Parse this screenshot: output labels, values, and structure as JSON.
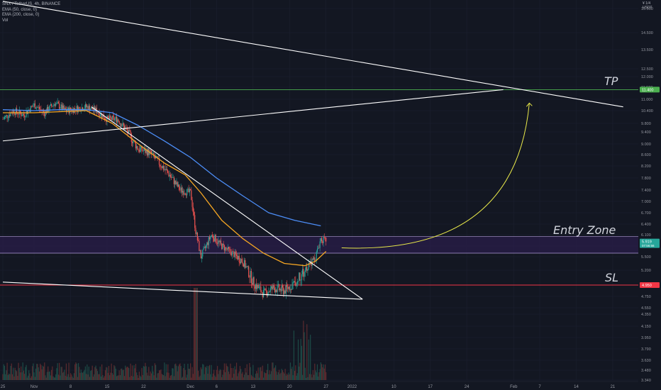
{
  "legend": {
    "symbol": "SNX / TetherUS, 4h, BINANCE",
    "indicators": [
      "EMA (50, close, 0)",
      "EMA (200, close, 0)",
      "Vol"
    ]
  },
  "price_scale": {
    "currency_line1": "¥ 1/4",
    "currency_line2": "USDT"
  },
  "annotations": {
    "tp": "TP",
    "entry": "Entry Zone",
    "sl": "SL"
  },
  "colors": {
    "background": "#131722",
    "up": "#26a69a",
    "down": "#ef5350",
    "ema50": "#f5a623",
    "ema200": "#4c8df6",
    "tp_line": "#4caf50",
    "sl_line": "#f23645",
    "zone_line": "#b39ddb",
    "zone_fill": "#2a1e4a",
    "trendline": "#ffffff",
    "projection": "#e8e84a"
  },
  "chart_data": {
    "type": "candlestick",
    "title": "SNX / TetherUS, 4h, BINANCE",
    "series_names": [
      "EMA (50, close, 0)",
      "EMA (200, close, 0)",
      "Vol"
    ],
    "y_ticks": [
      "15.500",
      "14.500",
      "13.500",
      "12.500",
      "12.000",
      "11.500",
      "11.000",
      "10.400",
      "9.800",
      "9.400",
      "9.000",
      "8.600",
      "8.200",
      "7.800",
      "7.400",
      "7.000",
      "6.700",
      "6.400",
      "6.100",
      "5.800",
      "5.500",
      "5.200",
      "4.950",
      "4.750",
      "4.550",
      "4.350",
      "4.150",
      "3.950",
      "3.790",
      "3.630",
      "3.480",
      "3.340"
    ],
    "y_tick_values": [
      15.5,
      14.5,
      13.5,
      12.5,
      12.0,
      11.5,
      11.0,
      10.4,
      9.8,
      9.4,
      9.0,
      8.6,
      8.2,
      7.8,
      7.4,
      7.0,
      6.7,
      6.4,
      6.1,
      5.8,
      5.5,
      5.2,
      4.95,
      4.75,
      4.55,
      4.35,
      4.15,
      3.95,
      3.79,
      3.63,
      3.48,
      3.34
    ],
    "x_ticks": [
      "25",
      "Nov",
      "8",
      "15",
      "22",
      "Dec",
      "6",
      "13",
      "20",
      "27",
      "2022",
      "10",
      "17",
      "24",
      "Feb",
      "7",
      "14",
      "21"
    ],
    "x_tick_days": [
      -6,
      0,
      7,
      14,
      21,
      30,
      35,
      42,
      49,
      56,
      61,
      69,
      76,
      83,
      92,
      97,
      104,
      111
    ],
    "price_labels": [
      {
        "text": "11.400",
        "value": 11.4,
        "color": "#4caf50"
      },
      {
        "text": "5.919",
        "sub": "07:56:56",
        "value": 5.919,
        "color": "#26a69a"
      },
      {
        "text": "4.950",
        "value": 4.95,
        "color": "#f23645"
      }
    ],
    "levels": {
      "tp": 11.4,
      "entry_zone": [
        5.6,
        6.05
      ],
      "sl": 4.95
    },
    "trendlines": [
      {
        "from": [
          -6,
          15.8
        ],
        "to": [
          113,
          10.6
        ]
      },
      {
        "from": [
          -6,
          9.1
        ],
        "to": [
          90,
          11.4
        ]
      },
      {
        "from": [
          11,
          10.6
        ],
        "to": [
          63,
          4.7
        ]
      },
      {
        "from": [
          -6,
          5.0
        ],
        "to": [
          63,
          4.7
        ]
      }
    ],
    "projection": {
      "from": [
        59,
        5.75
      ],
      "to": [
        95,
        10.8
      ]
    },
    "price_path": [
      [
        -6,
        10.0
      ],
      [
        -4,
        10.4
      ],
      [
        -2,
        10.2
      ],
      [
        0,
        10.7
      ],
      [
        2,
        10.3
      ],
      [
        4,
        10.8
      ],
      [
        6,
        10.4
      ],
      [
        8,
        10.5
      ],
      [
        10,
        10.6
      ],
      [
        12,
        10.4
      ],
      [
        14,
        10.0
      ],
      [
        16,
        10.0
      ],
      [
        18,
        9.4
      ],
      [
        20,
        8.8
      ],
      [
        22,
        8.7
      ],
      [
        24,
        8.3
      ],
      [
        26,
        7.9
      ],
      [
        28,
        7.4
      ],
      [
        30,
        7.3
      ],
      [
        31,
        6.2
      ],
      [
        32,
        5.5
      ],
      [
        34,
        6.1
      ],
      [
        36,
        5.8
      ],
      [
        38,
        5.6
      ],
      [
        40,
        5.4
      ],
      [
        42,
        5.0
      ],
      [
        44,
        4.8
      ],
      [
        46,
        4.9
      ],
      [
        48,
        4.85
      ],
      [
        50,
        5.0
      ],
      [
        52,
        5.2
      ],
      [
        54,
        5.5
      ],
      [
        55,
        6.0
      ],
      [
        56,
        5.919
      ]
    ],
    "ema50": [
      [
        -6,
        10.3
      ],
      [
        0,
        10.3
      ],
      [
        5,
        10.35
      ],
      [
        10,
        10.4
      ],
      [
        15,
        9.8
      ],
      [
        20,
        9.0
      ],
      [
        25,
        8.3
      ],
      [
        29,
        7.9
      ],
      [
        32,
        7.3
      ],
      [
        36,
        6.5
      ],
      [
        40,
        6.0
      ],
      [
        44,
        5.6
      ],
      [
        48,
        5.35
      ],
      [
        52,
        5.3
      ],
      [
        54,
        5.4
      ],
      [
        56,
        5.65
      ]
    ],
    "ema200": [
      [
        -6,
        10.45
      ],
      [
        0,
        10.4
      ],
      [
        5,
        10.45
      ],
      [
        10,
        10.45
      ],
      [
        15,
        10.3
      ],
      [
        20,
        9.7
      ],
      [
        25,
        9.1
      ],
      [
        30,
        8.5
      ],
      [
        35,
        7.8
      ],
      [
        40,
        7.2
      ],
      [
        45,
        6.7
      ],
      [
        50,
        6.5
      ],
      [
        55,
        6.35
      ]
    ]
  }
}
